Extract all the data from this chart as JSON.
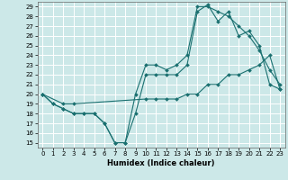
{
  "title": "",
  "xlabel": "Humidex (Indice chaleur)",
  "bg_color": "#cce8e8",
  "grid_color": "#ffffff",
  "line_color": "#1a7070",
  "xlim": [
    -0.5,
    23.5
  ],
  "ylim": [
    14.5,
    29.5
  ],
  "yticks": [
    15,
    16,
    17,
    18,
    19,
    20,
    21,
    22,
    23,
    24,
    25,
    26,
    27,
    28,
    29
  ],
  "xticks": [
    0,
    1,
    2,
    3,
    4,
    5,
    6,
    7,
    8,
    9,
    10,
    11,
    12,
    13,
    14,
    15,
    16,
    17,
    18,
    19,
    20,
    21,
    22,
    23
  ],
  "line1_x": [
    0,
    1,
    2,
    3,
    4,
    5,
    6,
    7,
    8,
    9,
    10,
    11,
    12,
    13,
    14,
    15,
    16,
    17,
    18,
    19,
    20,
    21,
    22,
    23
  ],
  "line1_y": [
    20,
    19,
    18.5,
    18,
    18,
    18,
    17,
    15,
    15,
    20,
    23,
    23,
    22.5,
    23,
    24,
    29,
    29,
    28.5,
    28,
    27,
    26,
    24.5,
    22.5,
    21
  ],
  "line2_x": [
    0,
    1,
    2,
    3,
    4,
    5,
    6,
    7,
    8,
    9,
    10,
    11,
    12,
    13,
    14,
    15,
    16,
    17,
    18,
    19,
    20,
    21,
    22,
    23
  ],
  "line2_y": [
    20,
    19,
    18.5,
    18,
    18,
    18,
    17,
    15,
    15,
    18,
    22,
    22,
    22,
    22,
    23,
    28.5,
    29.2,
    27.5,
    28.5,
    26,
    26.5,
    25,
    21,
    20.5
  ],
  "line3_x": [
    0,
    2,
    3,
    10,
    11,
    12,
    13,
    14,
    15,
    16,
    17,
    18,
    19,
    20,
    21,
    22,
    23
  ],
  "line3_y": [
    20,
    19,
    19,
    19.5,
    19.5,
    19.5,
    19.5,
    20,
    20,
    21,
    21,
    22,
    22,
    22.5,
    23,
    24,
    20.5
  ],
  "marker_size": 2.0,
  "linewidth": 0.8,
  "tick_fontsize": 5.0,
  "xlabel_fontsize": 6.0
}
